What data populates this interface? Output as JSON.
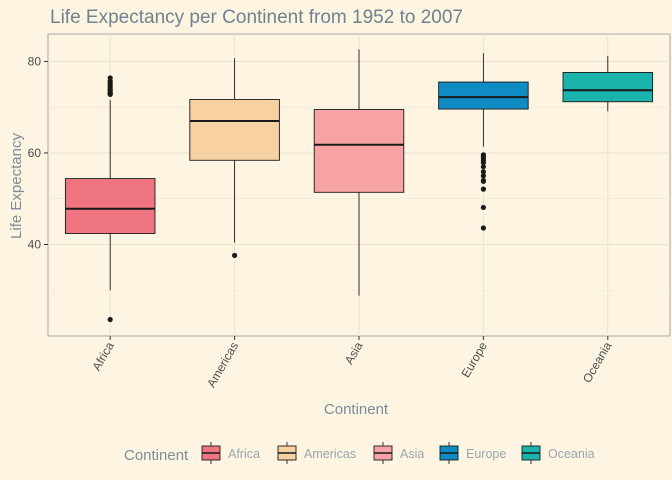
{
  "chart_data": {
    "type": "boxplot",
    "title": "Life Expectancy per Continent from 1952 to 2007",
    "xlabel": "Continent",
    "ylabel": "Life Expectancy",
    "ylim": [
      20,
      86
    ],
    "yticks": [
      40,
      60,
      80
    ],
    "grid": true,
    "legend": {
      "title": "Continent",
      "placement": "bottom"
    },
    "categories": [
      "Africa",
      "Americas",
      "Asia",
      "Europe",
      "Oceania"
    ],
    "series": [
      {
        "name": "Africa",
        "color": "#ef7580",
        "whisker_low": 30.0,
        "q1": 42.4,
        "median": 47.8,
        "q3": 54.4,
        "whisker_high": 71.6,
        "outliers": [
          72.8,
          73.0,
          73.2,
          73.6,
          73.9,
          74.3,
          74.8,
          75.3,
          75.7,
          76.4,
          23.6
        ]
      },
      {
        "name": "Americas",
        "color": "#f7d1a1",
        "whisker_low": 40.4,
        "q1": 58.4,
        "median": 67.0,
        "q3": 71.7,
        "whisker_high": 80.7,
        "outliers": [
          37.6
        ]
      },
      {
        "name": "Asia",
        "color": "#f7a3a3",
        "whisker_low": 28.8,
        "q1": 51.4,
        "median": 61.8,
        "q3": 69.5,
        "whisker_high": 82.6,
        "outliers": []
      },
      {
        "name": "Europe",
        "color": "#0e8cc3",
        "whisker_low": 61.4,
        "q1": 69.6,
        "median": 72.2,
        "q3": 75.5,
        "whisker_high": 81.8,
        "outliers": [
          59.6,
          59.3,
          58.9,
          58.4,
          57.9,
          57.0,
          55.9,
          55.0,
          54.0,
          53.8,
          52.1,
          48.1,
          43.6
        ]
      },
      {
        "name": "Oceania",
        "color": "#1db3ad",
        "whisker_low": 69.1,
        "q1": 71.2,
        "median": 73.7,
        "q3": 77.6,
        "whisker_high": 81.2,
        "outliers": []
      }
    ]
  }
}
